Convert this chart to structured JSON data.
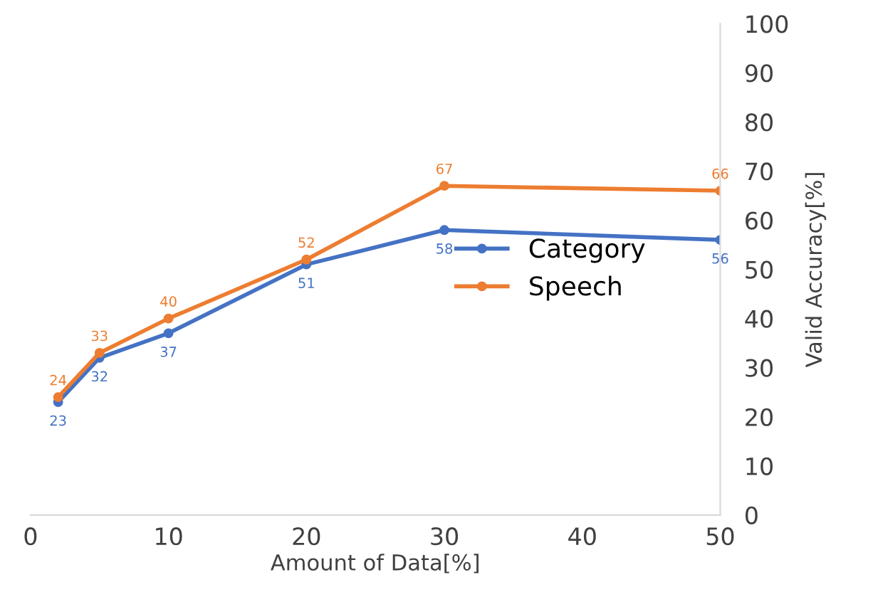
{
  "chart_data": {
    "type": "line",
    "xlabel": "Amount of Data[%]",
    "ylabel": "Valid Accuracy[%]",
    "x": [
      2,
      5,
      10,
      20,
      30,
      50
    ],
    "series": [
      {
        "name": "Category",
        "color": "#4472c4",
        "values": [
          23,
          32,
          37,
          51,
          58,
          56
        ]
      },
      {
        "name": "Speech",
        "color": "#ed7d31",
        "values": [
          24,
          33,
          40,
          52,
          67,
          66
        ]
      }
    ],
    "xlim": [
      0,
      50
    ],
    "xticks": [
      0,
      10,
      20,
      30,
      40,
      50
    ],
    "ylim": [
      0,
      100
    ],
    "yticks": [
      0,
      10,
      20,
      30,
      40,
      50,
      60,
      70,
      80,
      90,
      100
    ],
    "data_labels": true,
    "marker": "circle",
    "line_style": "solid",
    "grid": false,
    "legend": "center right"
  }
}
